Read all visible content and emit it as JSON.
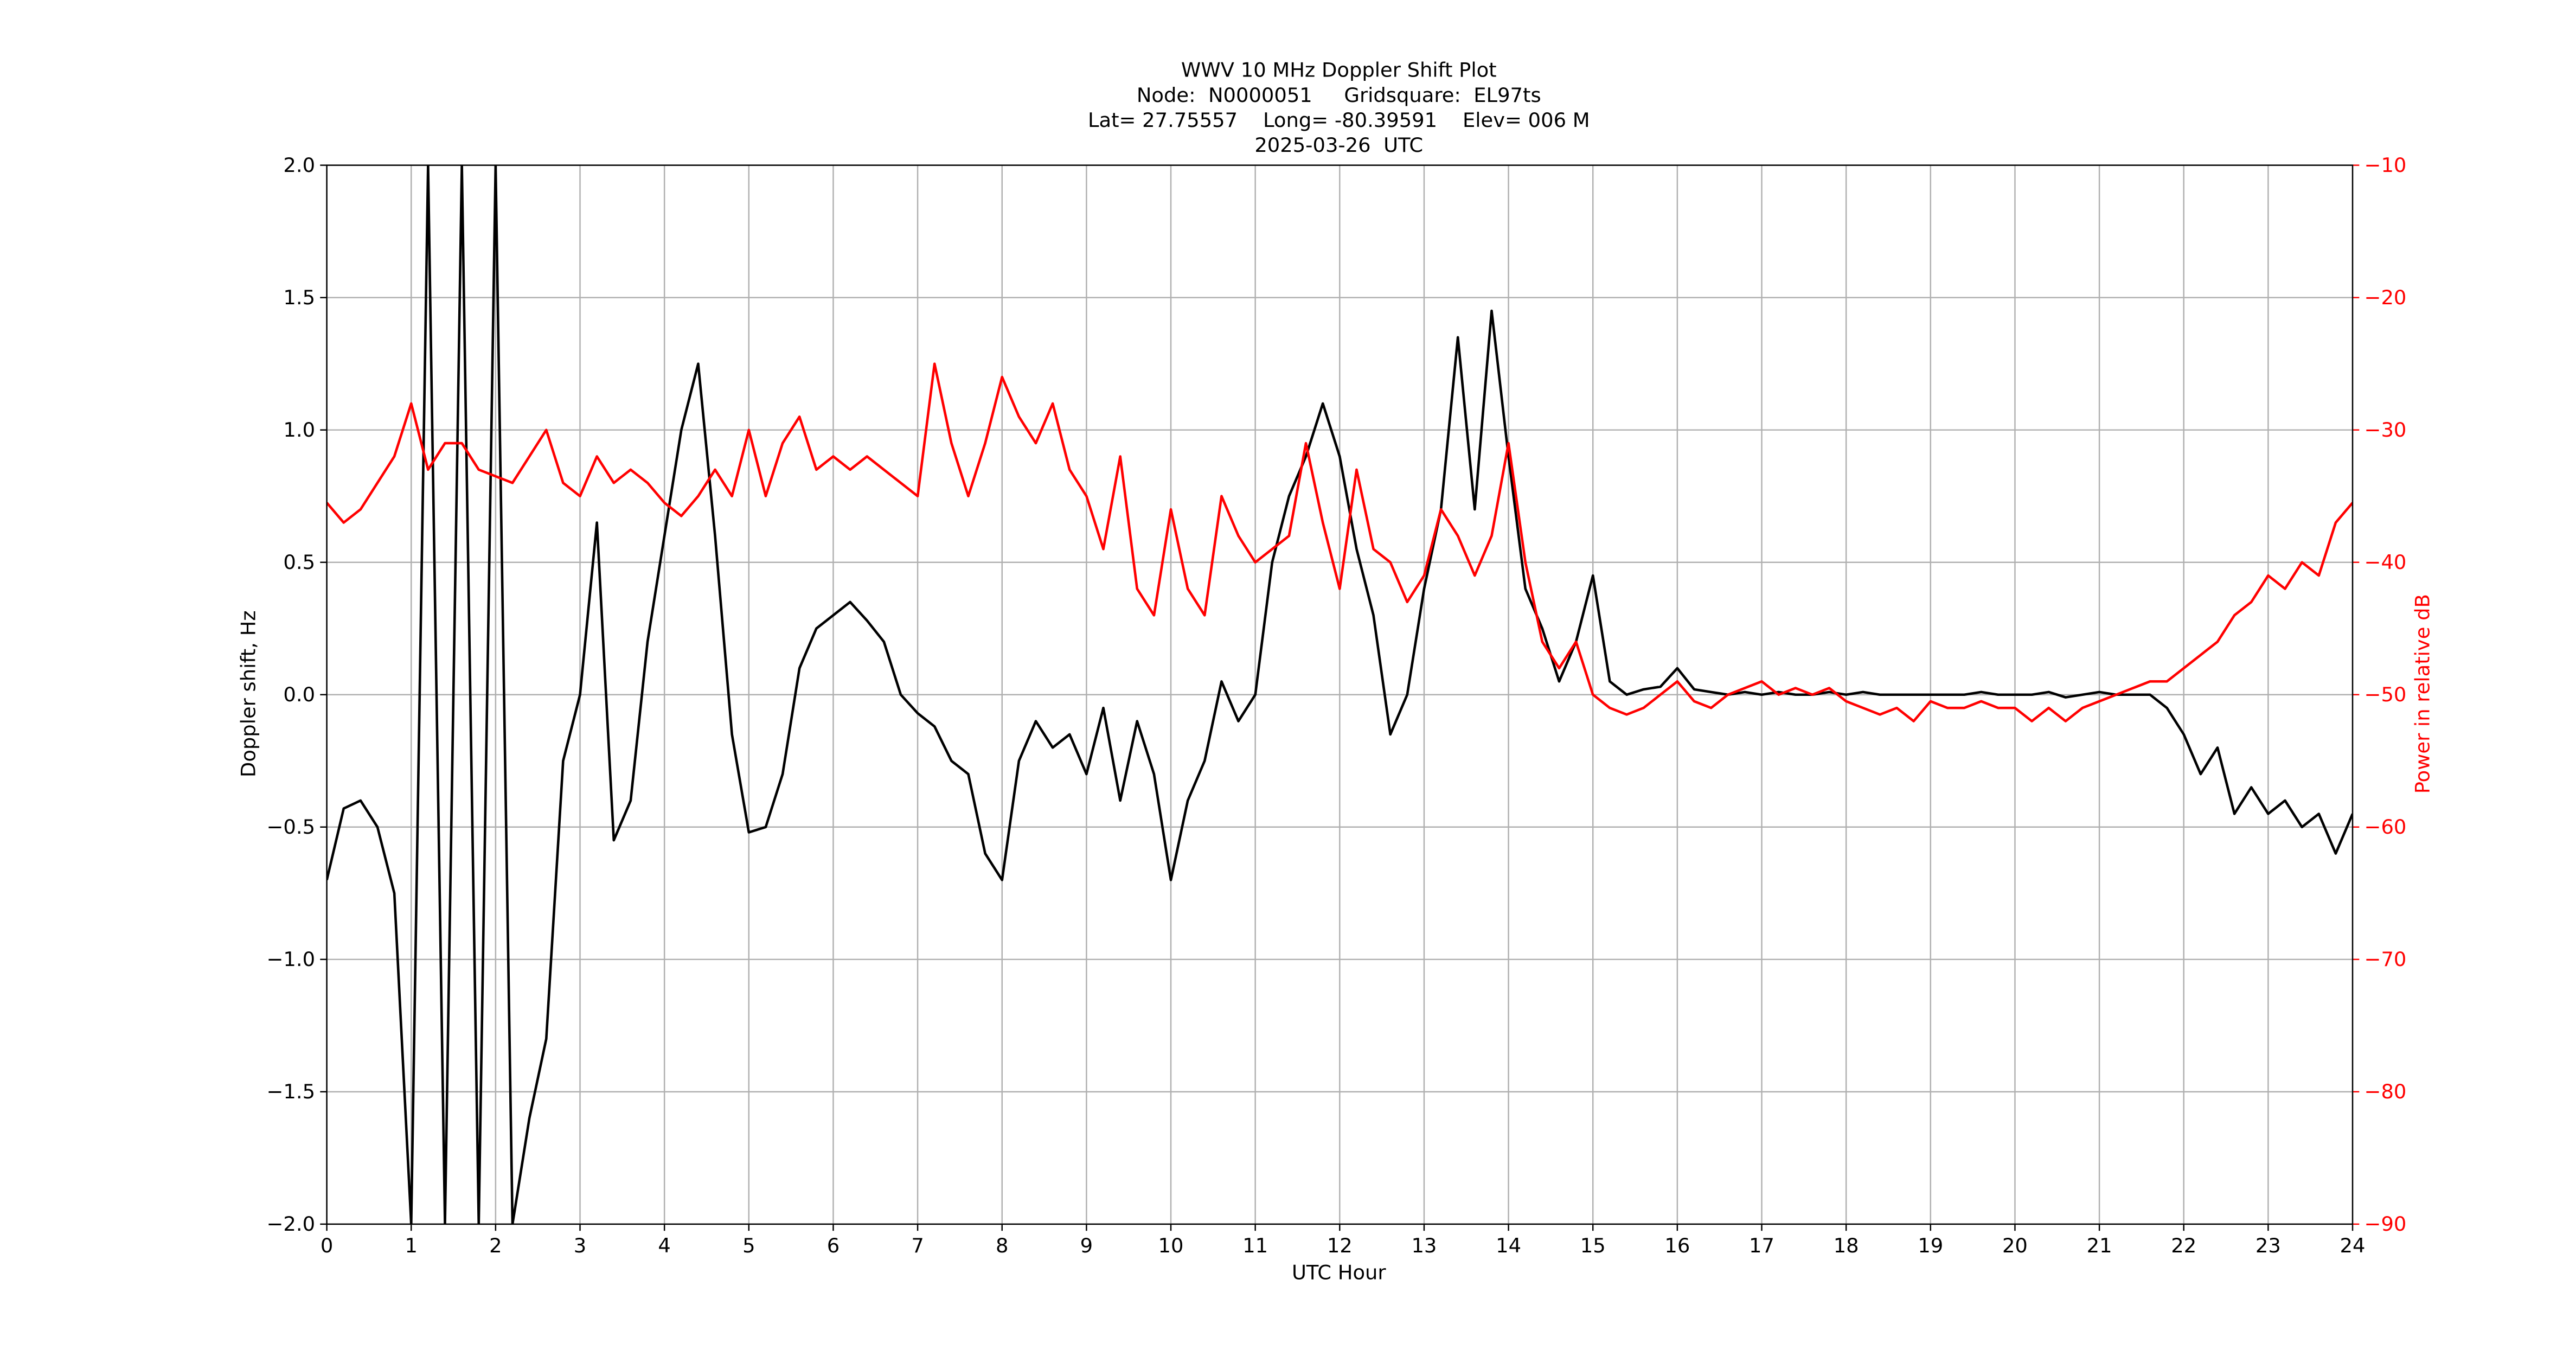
{
  "chart_data": {
    "type": "line",
    "title_lines": [
      "WWV 10 MHz Doppler Shift Plot",
      "Node:  N0000051     Gridsquare:  EL97ts",
      "Lat= 27.75557    Long= -80.39591    Elev= 006 M",
      "2025-03-26  UTC"
    ],
    "xlabel": "UTC Hour",
    "ylabel": "Doppler shift, Hz",
    "y2label": "Power in relative dB",
    "xlim": [
      0,
      24
    ],
    "xticks": [
      0,
      1,
      2,
      3,
      4,
      5,
      6,
      7,
      8,
      9,
      10,
      11,
      12,
      13,
      14,
      15,
      16,
      17,
      18,
      19,
      20,
      21,
      22,
      23,
      24
    ],
    "ylim": [
      -2,
      2
    ],
    "yticks": [
      {
        "value": -2,
        "label": "−2.0"
      },
      {
        "value": -1.5,
        "label": "−1.5"
      },
      {
        "value": -1,
        "label": "−1.0"
      },
      {
        "value": -0.5,
        "label": "−0.5"
      },
      {
        "value": 0,
        "label": "0.0"
      },
      {
        "value": 0.5,
        "label": "0.5"
      },
      {
        "value": 1,
        "label": "1.0"
      },
      {
        "value": 1.5,
        "label": "1.5"
      },
      {
        "value": 2,
        "label": "2.0"
      }
    ],
    "y2lim": [
      -90,
      -10
    ],
    "y2ticks": [
      {
        "value": -90,
        "label": "−90"
      },
      {
        "value": -80,
        "label": "−80"
      },
      {
        "value": -70,
        "label": "−70"
      },
      {
        "value": -60,
        "label": "−60"
      },
      {
        "value": -50,
        "label": "−50"
      },
      {
        "value": -40,
        "label": "−40"
      },
      {
        "value": -30,
        "label": "−30"
      },
      {
        "value": -20,
        "label": "−20"
      },
      {
        "value": -10,
        "label": "−10"
      }
    ],
    "grid": true,
    "y2color": "#ff0000",
    "x": [
      0,
      0.2,
      0.4,
      0.6,
      0.8,
      1,
      1.2,
      1.4,
      1.6,
      1.8,
      2,
      2.2,
      2.4,
      2.6,
      2.8,
      3,
      3.2,
      3.4,
      3.6,
      3.8,
      4,
      4.2,
      4.4,
      4.6,
      4.8,
      5,
      5.2,
      5.4,
      5.6,
      5.8,
      6,
      6.2,
      6.4,
      6.6,
      6.8,
      7,
      7.2,
      7.4,
      7.6,
      7.8,
      8,
      8.2,
      8.4,
      8.6,
      8.8,
      9,
      9.2,
      9.4,
      9.6,
      9.8,
      10,
      10.2,
      10.4,
      10.6,
      10.8,
      11,
      11.2,
      11.4,
      11.6,
      11.8,
      12,
      12.2,
      12.4,
      12.6,
      12.8,
      13,
      13.2,
      13.4,
      13.6,
      13.8,
      14,
      14.2,
      14.4,
      14.6,
      14.8,
      15,
      15.2,
      15.4,
      15.6,
      15.8,
      16,
      16.2,
      16.4,
      16.6,
      16.8,
      17,
      17.2,
      17.4,
      17.6,
      17.8,
      18,
      18.2,
      18.4,
      18.6,
      18.8,
      19,
      19.2,
      19.4,
      19.6,
      19.8,
      20,
      20.2,
      20.4,
      20.6,
      20.8,
      21,
      21.2,
      21.4,
      21.6,
      21.8,
      22,
      22.2,
      22.4,
      22.6,
      22.8,
      23,
      23.2,
      23.4,
      23.6,
      23.8,
      24
    ],
    "series": [
      {
        "name": "Doppler shift",
        "color": "#000000",
        "values": [
          -0.7,
          -0.43,
          -0.4,
          -0.5,
          -0.75,
          -2,
          2,
          -2,
          2,
          -2,
          2,
          -2,
          -1.6,
          -1.3,
          -0.25,
          0.0,
          0.65,
          -0.55,
          -0.4,
          0.2,
          0.6,
          1.0,
          1.25,
          0.6,
          -0.15,
          -0.52,
          -0.5,
          -0.3,
          0.1,
          0.25,
          0.3,
          0.35,
          0.28,
          0.2,
          0.0,
          -0.07,
          -0.12,
          -0.25,
          -0.3,
          -0.6,
          -0.7,
          -0.25,
          -0.1,
          -0.2,
          -0.15,
          -0.3,
          -0.05,
          -0.4,
          -0.1,
          -0.3,
          -0.7,
          -0.4,
          -0.25,
          0.05,
          -0.1,
          0.0,
          0.5,
          0.75,
          0.9,
          1.1,
          0.9,
          0.55,
          0.3,
          -0.15,
          0.0,
          0.4,
          0.7,
          1.35,
          0.7,
          1.45,
          0.9,
          0.4,
          0.25,
          0.05,
          0.2,
          0.45,
          0.05,
          0.0,
          0.02,
          0.03,
          0.1,
          0.02,
          0.01,
          0.0,
          0.01,
          0.0,
          0.01,
          0.0,
          0.0,
          0.01,
          0.0,
          0.01,
          0.0,
          0.0,
          0.0,
          0.0,
          0.0,
          0.0,
          0.01,
          0.0,
          0.0,
          0.0,
          0.01,
          -0.01,
          0.0,
          0.01,
          0.0,
          0.0,
          0.0,
          -0.05,
          -0.15,
          -0.3,
          -0.2,
          -0.45,
          -0.35,
          -0.45,
          -0.4,
          -0.5,
          -0.45,
          -0.6,
          -0.45
        ]
      },
      {
        "name": "Power",
        "color": "#ff0000",
        "axis": "y2",
        "values": [
          -35.5,
          -37,
          -36,
          -34,
          -32,
          -28,
          -33,
          -31,
          -31,
          -33,
          -33.5,
          -34,
          -32,
          -30,
          -34,
          -35,
          -32,
          -34,
          -33,
          -34,
          -35.5,
          -36.5,
          -35,
          -33,
          -35,
          -30,
          -35,
          -31,
          -29,
          -33,
          -32,
          -33,
          -32,
          -33,
          -34,
          -35,
          -25,
          -31,
          -35,
          -31,
          -26,
          -29,
          -31,
          -28,
          -33,
          -35,
          -39,
          -32,
          -42,
          -44,
          -36,
          -42,
          -44,
          -35,
          -38,
          -40,
          -39,
          -38,
          -31,
          -37,
          -42,
          -33,
          -39,
          -40,
          -43,
          -41,
          -36,
          -38,
          -41,
          -38,
          -31,
          -40,
          -46,
          -48,
          -46,
          -50,
          -51,
          -51.5,
          -51,
          -50,
          -49,
          -50.5,
          -51,
          -50,
          -49.5,
          -49,
          -50,
          -49.5,
          -50,
          -49.5,
          -50.5,
          -51,
          -51.5,
          -51,
          -52,
          -50.5,
          -51,
          -51,
          -50.5,
          -51,
          -51,
          -52,
          -51,
          -52,
          -51,
          -50.5,
          -50,
          -49.5,
          -49,
          -49,
          -48,
          -47,
          -46,
          -44,
          -43,
          -41,
          -42,
          -40,
          -41,
          -37,
          -35.5
        ]
      }
    ]
  }
}
